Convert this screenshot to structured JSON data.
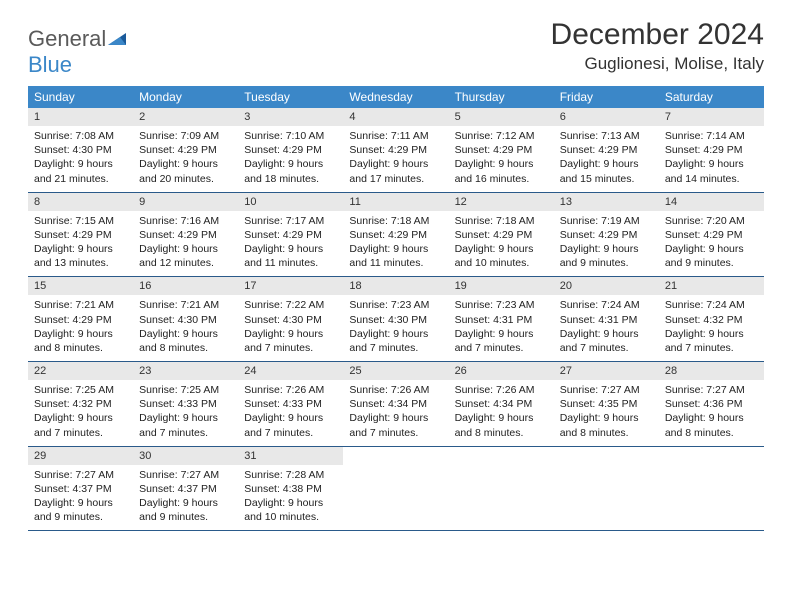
{
  "logo": {
    "text1": "General",
    "text2": "Blue"
  },
  "title": "December 2024",
  "location": "Guglionesi, Molise, Italy",
  "colors": {
    "header_bg": "#3b87c8",
    "header_text": "#ffffff",
    "daynum_bg": "#e8e8e8",
    "week_border": "#2a5a8a",
    "logo_gray": "#5a5a5a",
    "logo_blue": "#3b87c8"
  },
  "weekdays": [
    "Sunday",
    "Monday",
    "Tuesday",
    "Wednesday",
    "Thursday",
    "Friday",
    "Saturday"
  ],
  "weeks": [
    [
      {
        "n": "1",
        "sr": "7:08 AM",
        "ss": "4:30 PM",
        "dl": "9 hours and 21 minutes."
      },
      {
        "n": "2",
        "sr": "7:09 AM",
        "ss": "4:29 PM",
        "dl": "9 hours and 20 minutes."
      },
      {
        "n": "3",
        "sr": "7:10 AM",
        "ss": "4:29 PM",
        "dl": "9 hours and 18 minutes."
      },
      {
        "n": "4",
        "sr": "7:11 AM",
        "ss": "4:29 PM",
        "dl": "9 hours and 17 minutes."
      },
      {
        "n": "5",
        "sr": "7:12 AM",
        "ss": "4:29 PM",
        "dl": "9 hours and 16 minutes."
      },
      {
        "n": "6",
        "sr": "7:13 AM",
        "ss": "4:29 PM",
        "dl": "9 hours and 15 minutes."
      },
      {
        "n": "7",
        "sr": "7:14 AM",
        "ss": "4:29 PM",
        "dl": "9 hours and 14 minutes."
      }
    ],
    [
      {
        "n": "8",
        "sr": "7:15 AM",
        "ss": "4:29 PM",
        "dl": "9 hours and 13 minutes."
      },
      {
        "n": "9",
        "sr": "7:16 AM",
        "ss": "4:29 PM",
        "dl": "9 hours and 12 minutes."
      },
      {
        "n": "10",
        "sr": "7:17 AM",
        "ss": "4:29 PM",
        "dl": "9 hours and 11 minutes."
      },
      {
        "n": "11",
        "sr": "7:18 AM",
        "ss": "4:29 PM",
        "dl": "9 hours and 11 minutes."
      },
      {
        "n": "12",
        "sr": "7:18 AM",
        "ss": "4:29 PM",
        "dl": "9 hours and 10 minutes."
      },
      {
        "n": "13",
        "sr": "7:19 AM",
        "ss": "4:29 PM",
        "dl": "9 hours and 9 minutes."
      },
      {
        "n": "14",
        "sr": "7:20 AM",
        "ss": "4:29 PM",
        "dl": "9 hours and 9 minutes."
      }
    ],
    [
      {
        "n": "15",
        "sr": "7:21 AM",
        "ss": "4:29 PM",
        "dl": "9 hours and 8 minutes."
      },
      {
        "n": "16",
        "sr": "7:21 AM",
        "ss": "4:30 PM",
        "dl": "9 hours and 8 minutes."
      },
      {
        "n": "17",
        "sr": "7:22 AM",
        "ss": "4:30 PM",
        "dl": "9 hours and 7 minutes."
      },
      {
        "n": "18",
        "sr": "7:23 AM",
        "ss": "4:30 PM",
        "dl": "9 hours and 7 minutes."
      },
      {
        "n": "19",
        "sr": "7:23 AM",
        "ss": "4:31 PM",
        "dl": "9 hours and 7 minutes."
      },
      {
        "n": "20",
        "sr": "7:24 AM",
        "ss": "4:31 PM",
        "dl": "9 hours and 7 minutes."
      },
      {
        "n": "21",
        "sr": "7:24 AM",
        "ss": "4:32 PM",
        "dl": "9 hours and 7 minutes."
      }
    ],
    [
      {
        "n": "22",
        "sr": "7:25 AM",
        "ss": "4:32 PM",
        "dl": "9 hours and 7 minutes."
      },
      {
        "n": "23",
        "sr": "7:25 AM",
        "ss": "4:33 PM",
        "dl": "9 hours and 7 minutes."
      },
      {
        "n": "24",
        "sr": "7:26 AM",
        "ss": "4:33 PM",
        "dl": "9 hours and 7 minutes."
      },
      {
        "n": "25",
        "sr": "7:26 AM",
        "ss": "4:34 PM",
        "dl": "9 hours and 7 minutes."
      },
      {
        "n": "26",
        "sr": "7:26 AM",
        "ss": "4:34 PM",
        "dl": "9 hours and 8 minutes."
      },
      {
        "n": "27",
        "sr": "7:27 AM",
        "ss": "4:35 PM",
        "dl": "9 hours and 8 minutes."
      },
      {
        "n": "28",
        "sr": "7:27 AM",
        "ss": "4:36 PM",
        "dl": "9 hours and 8 minutes."
      }
    ],
    [
      {
        "n": "29",
        "sr": "7:27 AM",
        "ss": "4:37 PM",
        "dl": "9 hours and 9 minutes."
      },
      {
        "n": "30",
        "sr": "7:27 AM",
        "ss": "4:37 PM",
        "dl": "9 hours and 9 minutes."
      },
      {
        "n": "31",
        "sr": "7:28 AM",
        "ss": "4:38 PM",
        "dl": "9 hours and 10 minutes."
      },
      null,
      null,
      null,
      null
    ]
  ],
  "labels": {
    "sunrise": "Sunrise:",
    "sunset": "Sunset:",
    "daylight": "Daylight:"
  }
}
